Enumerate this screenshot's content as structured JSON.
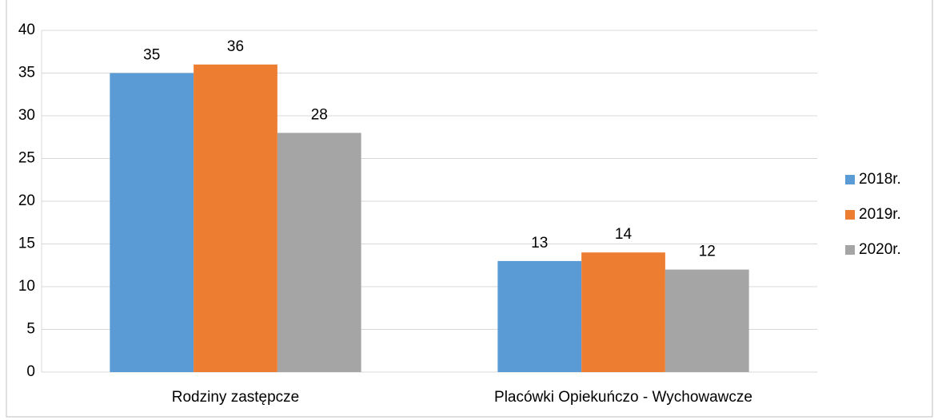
{
  "chart_data": {
    "type": "bar",
    "categories": [
      "Rodziny zastępcze",
      "Placówki Opiekuńczo - Wychowawcze"
    ],
    "series": [
      {
        "name": "2018r.",
        "color": "#5b9bd5",
        "values": [
          35,
          13
        ]
      },
      {
        "name": "2019r.",
        "color": "#ed7d31",
        "values": [
          36,
          14
        ]
      },
      {
        "name": "2020r.",
        "color": "#a5a5a5",
        "values": [
          28,
          12
        ]
      }
    ],
    "ylim": [
      0,
      40
    ],
    "yticks": [
      0,
      5,
      10,
      15,
      20,
      25,
      30,
      35,
      40
    ],
    "grid": true,
    "legend": "right"
  }
}
